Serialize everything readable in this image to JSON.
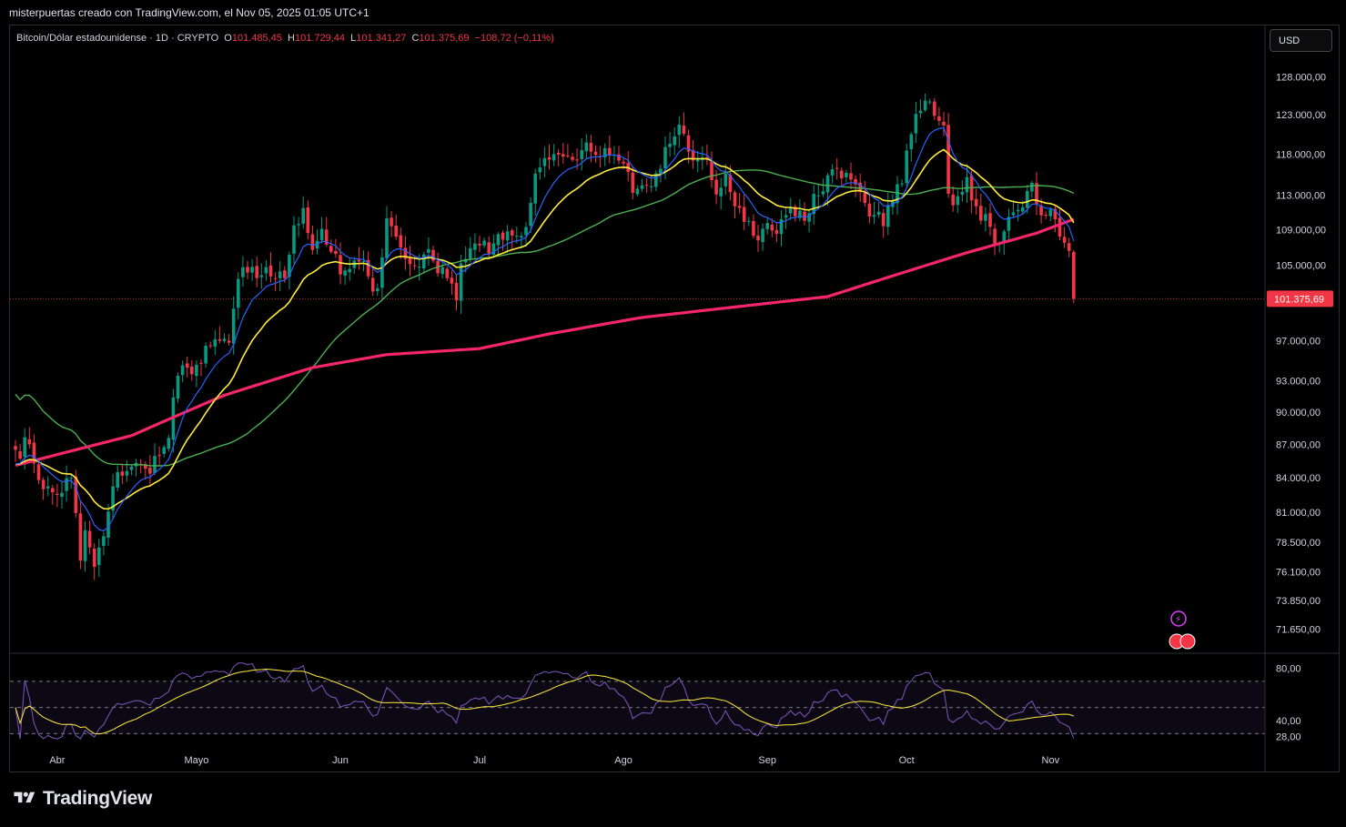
{
  "header": {
    "credit": "misterpuertas creado con TradingView.com, el Nov 05, 2025 01:05 UTC+1"
  },
  "legend": {
    "symbol": "Bitcoin/Dólar estadounidense · 1D · CRYPTO",
    "o_label": "O",
    "o_value": "101.485,45",
    "h_label": "H",
    "h_value": "101.729,44",
    "l_label": "L",
    "l_value": "101.341,27",
    "c_label": "C",
    "c_value": "101.375,69",
    "change": "−108,72 (−0,11%)"
  },
  "currency_button": "USD",
  "price_tag": "101.375,69",
  "brand": "TradingView",
  "colors": {
    "up": "#089981",
    "down": "#f23645",
    "ma_blue": "#2962ff",
    "ma_yellow": "#ffeb3b",
    "ma_green": "#4caf50",
    "ma_pink": "#f7266b",
    "rsi": "#7e57c2",
    "rsi_ma": "#ffeb3b"
  },
  "chart_data": {
    "type": "candlestick",
    "price_axis": {
      "ticks": [
        "128.000,00",
        "123.000,00",
        "118.000,00",
        "113.000,00",
        "109.000,00",
        "105.000,00",
        "97.000,00",
        "93.000,00",
        "90.000,00",
        "87.000,00",
        "84.000,00",
        "81.000,00",
        "78.500,00",
        "76.100,00",
        "73.850,00",
        "71.650,00"
      ],
      "tick_values": [
        128000,
        123000,
        118000,
        113000,
        109000,
        105000,
        97000,
        93000,
        90000,
        87000,
        84000,
        81000,
        78500,
        76100,
        73850,
        71650
      ],
      "scale": "log"
    },
    "time_axis": {
      "labels": [
        "Abr",
        "Mayo",
        "Jun",
        "Jul",
        "Ago",
        "Sep",
        "Oct",
        "Nov"
      ],
      "label_day_index": [
        9,
        39,
        70,
        100,
        131,
        162,
        192,
        223
      ]
    },
    "rsi_axis": {
      "ticks": [
        "80,00",
        "40,00",
        "28,00"
      ],
      "tick_values": [
        80,
        40,
        28
      ],
      "bands": [
        70,
        50,
        30
      ]
    },
    "close_anchors": [
      [
        0,
        86500
      ],
      [
        3,
        87000
      ],
      [
        6,
        83000
      ],
      [
        9,
        82500
      ],
      [
        12,
        84000
      ],
      [
        14,
        77000
      ],
      [
        15,
        79500
      ],
      [
        17,
        76500
      ],
      [
        19,
        79000
      ],
      [
        22,
        84500
      ],
      [
        25,
        85000
      ],
      [
        28,
        84800
      ],
      [
        31,
        86000
      ],
      [
        33,
        87600
      ],
      [
        35,
        93500
      ],
      [
        37,
        94300
      ],
      [
        40,
        94700
      ],
      [
        42,
        96500
      ],
      [
        44,
        97000
      ],
      [
        46,
        96800
      ],
      [
        48,
        103500
      ],
      [
        50,
        104200
      ],
      [
        52,
        103600
      ],
      [
        54,
        104800
      ],
      [
        56,
        103500
      ],
      [
        58,
        103600
      ],
      [
        60,
        109500
      ],
      [
        62,
        111500
      ],
      [
        64,
        106700
      ],
      [
        66,
        109100
      ],
      [
        68,
        106500
      ],
      [
        70,
        104000
      ],
      [
        72,
        104600
      ],
      [
        74,
        105400
      ],
      [
        76,
        103800
      ],
      [
        78,
        102500
      ],
      [
        80,
        110300
      ],
      [
        82,
        108200
      ],
      [
        84,
        105700
      ],
      [
        86,
        104900
      ],
      [
        88,
        106200
      ],
      [
        90,
        105500
      ],
      [
        92,
        104800
      ],
      [
        94,
        103000
      ],
      [
        95,
        101200
      ],
      [
        96,
        105200
      ],
      [
        98,
        106900
      ],
      [
        100,
        107200
      ],
      [
        102,
        106300
      ],
      [
        104,
        108500
      ],
      [
        106,
        108800
      ],
      [
        108,
        108300
      ],
      [
        110,
        109300
      ],
      [
        112,
        115600
      ],
      [
        114,
        117500
      ],
      [
        116,
        118000
      ],
      [
        118,
        117700
      ],
      [
        120,
        117300
      ],
      [
        122,
        118500
      ],
      [
        124,
        118300
      ],
      [
        126,
        117700
      ],
      [
        128,
        117900
      ],
      [
        130,
        117200
      ],
      [
        132,
        115800
      ],
      [
        133,
        113300
      ],
      [
        135,
        114200
      ],
      [
        137,
        114100
      ],
      [
        139,
        116200
      ],
      [
        141,
        119300
      ],
      [
        143,
        121700
      ],
      [
        145,
        118300
      ],
      [
        147,
        117400
      ],
      [
        149,
        117300
      ],
      [
        151,
        113100
      ],
      [
        153,
        115600
      ],
      [
        155,
        111700
      ],
      [
        157,
        109900
      ],
      [
        159,
        108300
      ],
      [
        161,
        109100
      ],
      [
        163,
        108900
      ],
      [
        165,
        110200
      ],
      [
        167,
        111600
      ],
      [
        169,
        111200
      ],
      [
        171,
        110900
      ],
      [
        173,
        113000
      ],
      [
        175,
        115400
      ],
      [
        177,
        116200
      ],
      [
        179,
        115700
      ],
      [
        181,
        114300
      ],
      [
        183,
        112100
      ],
      [
        185,
        110700
      ],
      [
        187,
        109400
      ],
      [
        189,
        112300
      ],
      [
        191,
        114400
      ],
      [
        193,
        120500
      ],
      [
        195,
        123500
      ],
      [
        197,
        124700
      ],
      [
        199,
        122200
      ],
      [
        200,
        121600
      ],
      [
        201,
        113200
      ],
      [
        203,
        112900
      ],
      [
        205,
        115200
      ],
      [
        207,
        111700
      ],
      [
        209,
        110800
      ],
      [
        211,
        107300
      ],
      [
        213,
        108800
      ],
      [
        215,
        111000
      ],
      [
        217,
        111600
      ],
      [
        219,
        114500
      ],
      [
        220,
        112000
      ],
      [
        222,
        110600
      ],
      [
        224,
        110200
      ],
      [
        226,
        107500
      ],
      [
        227,
        106600
      ],
      [
        228,
        101375
      ]
    ],
    "series": [
      {
        "name": "",
        "type": "ma",
        "period": 9,
        "color": "#2962ff"
      },
      {
        "name": "",
        "type": "ma",
        "period": 20,
        "color": "#ffeb3b"
      },
      {
        "name": "",
        "type": "ma",
        "period": 50,
        "color": "#4caf50"
      },
      {
        "name": "",
        "type": "ma",
        "period": 200,
        "color": "#f7266b",
        "anchors": [
          [
            0,
            85100
          ],
          [
            25,
            87800
          ],
          [
            45,
            91600
          ],
          [
            64,
            94300
          ],
          [
            80,
            95600
          ],
          [
            100,
            96200
          ],
          [
            115,
            97700
          ],
          [
            135,
            99400
          ],
          [
            155,
            100500
          ],
          [
            175,
            101600
          ],
          [
            190,
            104000
          ],
          [
            205,
            106400
          ],
          [
            220,
            108600
          ],
          [
            228,
            110200
          ]
        ]
      },
      {
        "name": "",
        "type": "rsi",
        "color": "#7e57c2"
      },
      {
        "name": "",
        "type": "rsi_ma",
        "color": "#ffeb3b"
      }
    ],
    "last_close": 101375.69,
    "ylim": [
      70000,
      131000
    ]
  }
}
